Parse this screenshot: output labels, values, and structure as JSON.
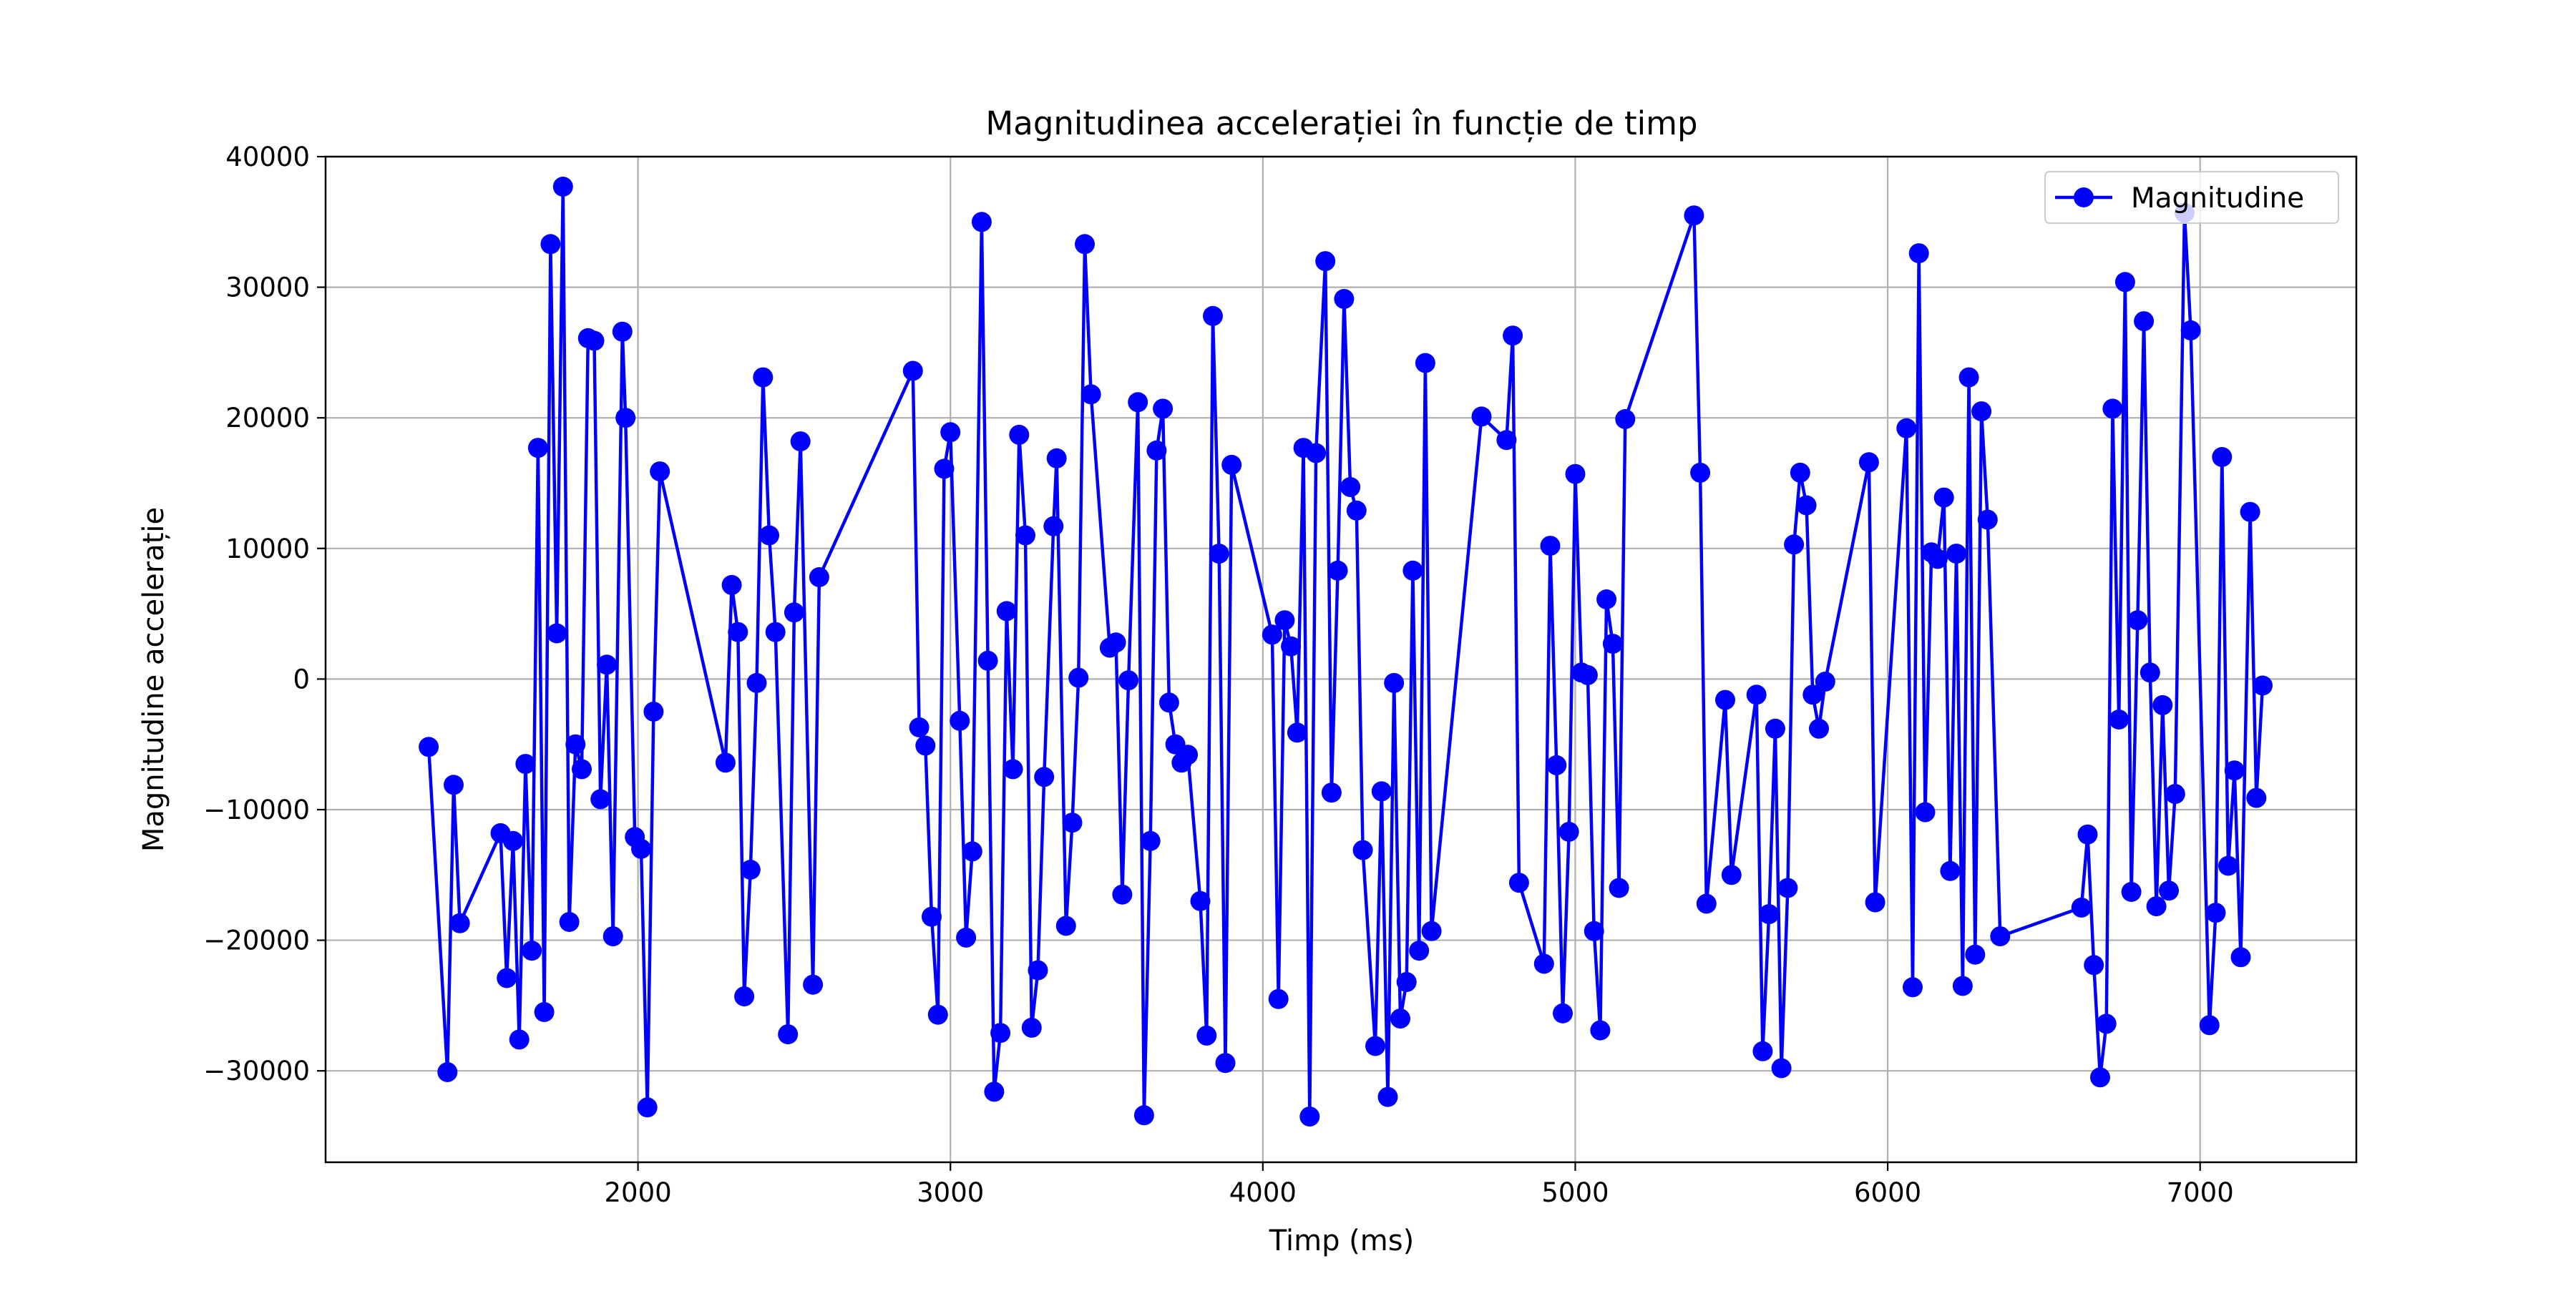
{
  "chart_data": {
    "type": "line",
    "title": "Magnitudinea accelerației în funcție de timp",
    "xlabel": "Timp (ms)",
    "ylabel": "Magnitudine accelerație",
    "xlim": [
      1000,
      7500
    ],
    "ylim": [
      -37000,
      40000
    ],
    "x_ticks": [
      2000,
      3000,
      4000,
      5000,
      6000,
      7000
    ],
    "y_ticks": [
      -30000,
      -20000,
      -10000,
      0,
      10000,
      20000,
      30000,
      40000
    ],
    "y_tick_labels": [
      "−30000",
      "−20000",
      "−10000",
      "0",
      "10000",
      "20000",
      "30000",
      "40000"
    ],
    "grid": true,
    "legend_position": "upper right",
    "series": [
      {
        "name": "Magnitudine",
        "color": "#0000ff",
        "marker": "circle",
        "points": [
          [
            1330,
            -5200
          ],
          [
            1390,
            -30100
          ],
          [
            1410,
            -8100
          ],
          [
            1430,
            -18700
          ],
          [
            1560,
            -11800
          ],
          [
            1580,
            -22900
          ],
          [
            1600,
            -12400
          ],
          [
            1620,
            -27600
          ],
          [
            1640,
            -6500
          ],
          [
            1660,
            -20800
          ],
          [
            1680,
            17700
          ],
          [
            1700,
            -25500
          ],
          [
            1720,
            33300
          ],
          [
            1740,
            3500
          ],
          [
            1760,
            37700
          ],
          [
            1780,
            -18600
          ],
          [
            1800,
            -5000
          ],
          [
            1820,
            -6900
          ],
          [
            1840,
            26100
          ],
          [
            1860,
            25900
          ],
          [
            1880,
            -9200
          ],
          [
            1900,
            1100
          ],
          [
            1920,
            -19700
          ],
          [
            1950,
            26600
          ],
          [
            1960,
            20000
          ],
          [
            1990,
            -12100
          ],
          [
            2010,
            -13000
          ],
          [
            2030,
            -32800
          ],
          [
            2050,
            -2500
          ],
          [
            2070,
            15900
          ],
          [
            2280,
            -6400
          ],
          [
            2300,
            7200
          ],
          [
            2320,
            3600
          ],
          [
            2340,
            -24300
          ],
          [
            2360,
            -14600
          ],
          [
            2380,
            -300
          ],
          [
            2400,
            23100
          ],
          [
            2420,
            11000
          ],
          [
            2440,
            3600
          ],
          [
            2480,
            -27200
          ],
          [
            2500,
            5100
          ],
          [
            2520,
            18200
          ],
          [
            2560,
            -23400
          ],
          [
            2580,
            7800
          ],
          [
            2880,
            23600
          ],
          [
            2900,
            -3700
          ],
          [
            2920,
            -5100
          ],
          [
            2940,
            -18200
          ],
          [
            2960,
            -25700
          ],
          [
            2980,
            16100
          ],
          [
            3000,
            18900
          ],
          [
            3030,
            -3200
          ],
          [
            3050,
            -19800
          ],
          [
            3070,
            -13200
          ],
          [
            3100,
            35000
          ],
          [
            3120,
            1400
          ],
          [
            3140,
            -31600
          ],
          [
            3160,
            -27100
          ],
          [
            3180,
            5200
          ],
          [
            3200,
            -6900
          ],
          [
            3220,
            18700
          ],
          [
            3240,
            11000
          ],
          [
            3260,
            -26700
          ],
          [
            3280,
            -22300
          ],
          [
            3300,
            -7500
          ],
          [
            3330,
            11700
          ],
          [
            3340,
            16900
          ],
          [
            3370,
            -18900
          ],
          [
            3390,
            -11000
          ],
          [
            3410,
            100
          ],
          [
            3430,
            33300
          ],
          [
            3450,
            21800
          ],
          [
            3510,
            2400
          ],
          [
            3530,
            2800
          ],
          [
            3550,
            -16500
          ],
          [
            3570,
            -100
          ],
          [
            3600,
            21200
          ],
          [
            3620,
            -33400
          ],
          [
            3640,
            -12400
          ],
          [
            3660,
            17500
          ],
          [
            3680,
            20700
          ],
          [
            3700,
            -1800
          ],
          [
            3720,
            -5000
          ],
          [
            3740,
            -6400
          ],
          [
            3760,
            -5800
          ],
          [
            3800,
            -17000
          ],
          [
            3820,
            -27300
          ],
          [
            3840,
            27800
          ],
          [
            3860,
            9600
          ],
          [
            3880,
            -29400
          ],
          [
            3900,
            16400
          ],
          [
            4030,
            3400
          ],
          [
            4050,
            -24500
          ],
          [
            4070,
            4500
          ],
          [
            4090,
            2500
          ],
          [
            4110,
            -4100
          ],
          [
            4130,
            17700
          ],
          [
            4150,
            -33500
          ],
          [
            4170,
            17300
          ],
          [
            4200,
            32000
          ],
          [
            4220,
            -8700
          ],
          [
            4240,
            8300
          ],
          [
            4260,
            29100
          ],
          [
            4280,
            14700
          ],
          [
            4300,
            12900
          ],
          [
            4320,
            -13100
          ],
          [
            4360,
            -28100
          ],
          [
            4380,
            -8600
          ],
          [
            4400,
            -32000
          ],
          [
            4420,
            -300
          ],
          [
            4440,
            -26000
          ],
          [
            4460,
            -23200
          ],
          [
            4480,
            8300
          ],
          [
            4500,
            -20800
          ],
          [
            4520,
            24200
          ],
          [
            4540,
            -19300
          ],
          [
            4700,
            20100
          ],
          [
            4780,
            18300
          ],
          [
            4800,
            26300
          ],
          [
            4820,
            -15600
          ],
          [
            4900,
            -21800
          ],
          [
            4920,
            10200
          ],
          [
            4940,
            -6600
          ],
          [
            4960,
            -25600
          ],
          [
            4980,
            -11700
          ],
          [
            5000,
            15700
          ],
          [
            5020,
            500
          ],
          [
            5040,
            300
          ],
          [
            5060,
            -19300
          ],
          [
            5080,
            -26900
          ],
          [
            5100,
            6100
          ],
          [
            5120,
            2700
          ],
          [
            5140,
            -16000
          ],
          [
            5160,
            19900
          ],
          [
            5380,
            35500
          ],
          [
            5400,
            15800
          ],
          [
            5420,
            -17200
          ],
          [
            5480,
            -1600
          ],
          [
            5500,
            -15000
          ],
          [
            5580,
            -1200
          ],
          [
            5600,
            -28500
          ],
          [
            5620,
            -18000
          ],
          [
            5640,
            -3800
          ],
          [
            5660,
            -29800
          ],
          [
            5680,
            -16000
          ],
          [
            5700,
            10300
          ],
          [
            5720,
            15800
          ],
          [
            5740,
            13300
          ],
          [
            5760,
            -1200
          ],
          [
            5780,
            -3800
          ],
          [
            5800,
            -200
          ],
          [
            5940,
            16600
          ],
          [
            5960,
            -17100
          ],
          [
            6060,
            19200
          ],
          [
            6080,
            -23600
          ],
          [
            6100,
            32600
          ],
          [
            6120,
            -10200
          ],
          [
            6140,
            9700
          ],
          [
            6160,
            9200
          ],
          [
            6180,
            13900
          ],
          [
            6200,
            -14700
          ],
          [
            6220,
            9600
          ],
          [
            6240,
            -23500
          ],
          [
            6260,
            23100
          ],
          [
            6280,
            -21100
          ],
          [
            6300,
            20500
          ],
          [
            6320,
            12200
          ],
          [
            6360,
            -19700
          ],
          [
            6620,
            -17500
          ],
          [
            6640,
            -11900
          ],
          [
            6660,
            -21900
          ],
          [
            6680,
            -30500
          ],
          [
            6700,
            -26400
          ],
          [
            6720,
            20700
          ],
          [
            6740,
            -3100
          ],
          [
            6760,
            30400
          ],
          [
            6780,
            -16300
          ],
          [
            6800,
            4500
          ],
          [
            6820,
            27400
          ],
          [
            6840,
            500
          ],
          [
            6860,
            -17400
          ],
          [
            6880,
            -2000
          ],
          [
            6900,
            -16200
          ],
          [
            6920,
            -8800
          ],
          [
            6950,
            35700
          ],
          [
            6970,
            26700
          ],
          [
            7030,
            -26500
          ],
          [
            7050,
            -17900
          ],
          [
            7070,
            17000
          ],
          [
            7090,
            -14300
          ],
          [
            7110,
            -7000
          ],
          [
            7130,
            -21300
          ],
          [
            7160,
            12800
          ],
          [
            7180,
            -9100
          ],
          [
            7200,
            -500
          ]
        ]
      }
    ]
  }
}
